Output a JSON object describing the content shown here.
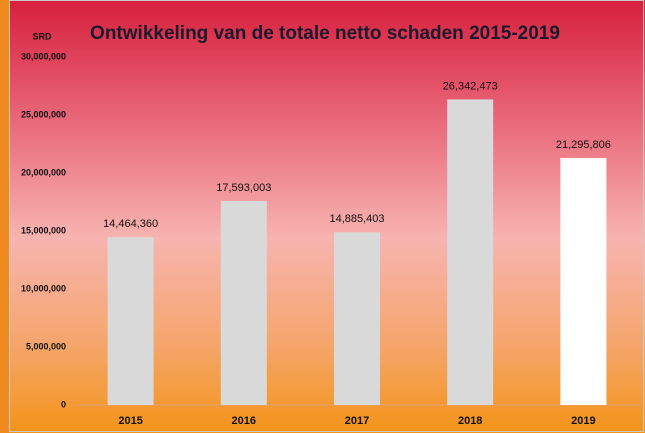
{
  "chart_data": {
    "type": "bar",
    "title": "Ontwikkeling van de totale netto schaden  2015-2019",
    "y_label": "SRD",
    "categories": [
      "2015",
      "2016",
      "2017",
      "2018",
      "2019"
    ],
    "values": [
      14464360,
      17593003,
      14885403,
      26342473,
      21295806
    ],
    "value_labels": [
      "14,464,360",
      "17,593,003",
      "14,885,403",
      "26,342,473",
      "21,295,806"
    ],
    "colors": [
      "#d9d9d9",
      "#d9d9d9",
      "#d9d9d9",
      "#d9d9d9",
      "#ffffff"
    ],
    "ylim": [
      0,
      30000000
    ],
    "yticks": [
      0,
      {
        "value": 5000000,
        "label": "5,000,000"
      },
      {
        "value": 10000000,
        "label": "10,000,000"
      },
      {
        "value": 15000000,
        "label": "15,000,000"
      },
      {
        "value": 20000000,
        "label": "20,000,000"
      },
      {
        "value": 25000000,
        "label": "25,000,000"
      },
      {
        "value": 30000000,
        "label": "30,000,000"
      }
    ],
    "grid": false
  }
}
